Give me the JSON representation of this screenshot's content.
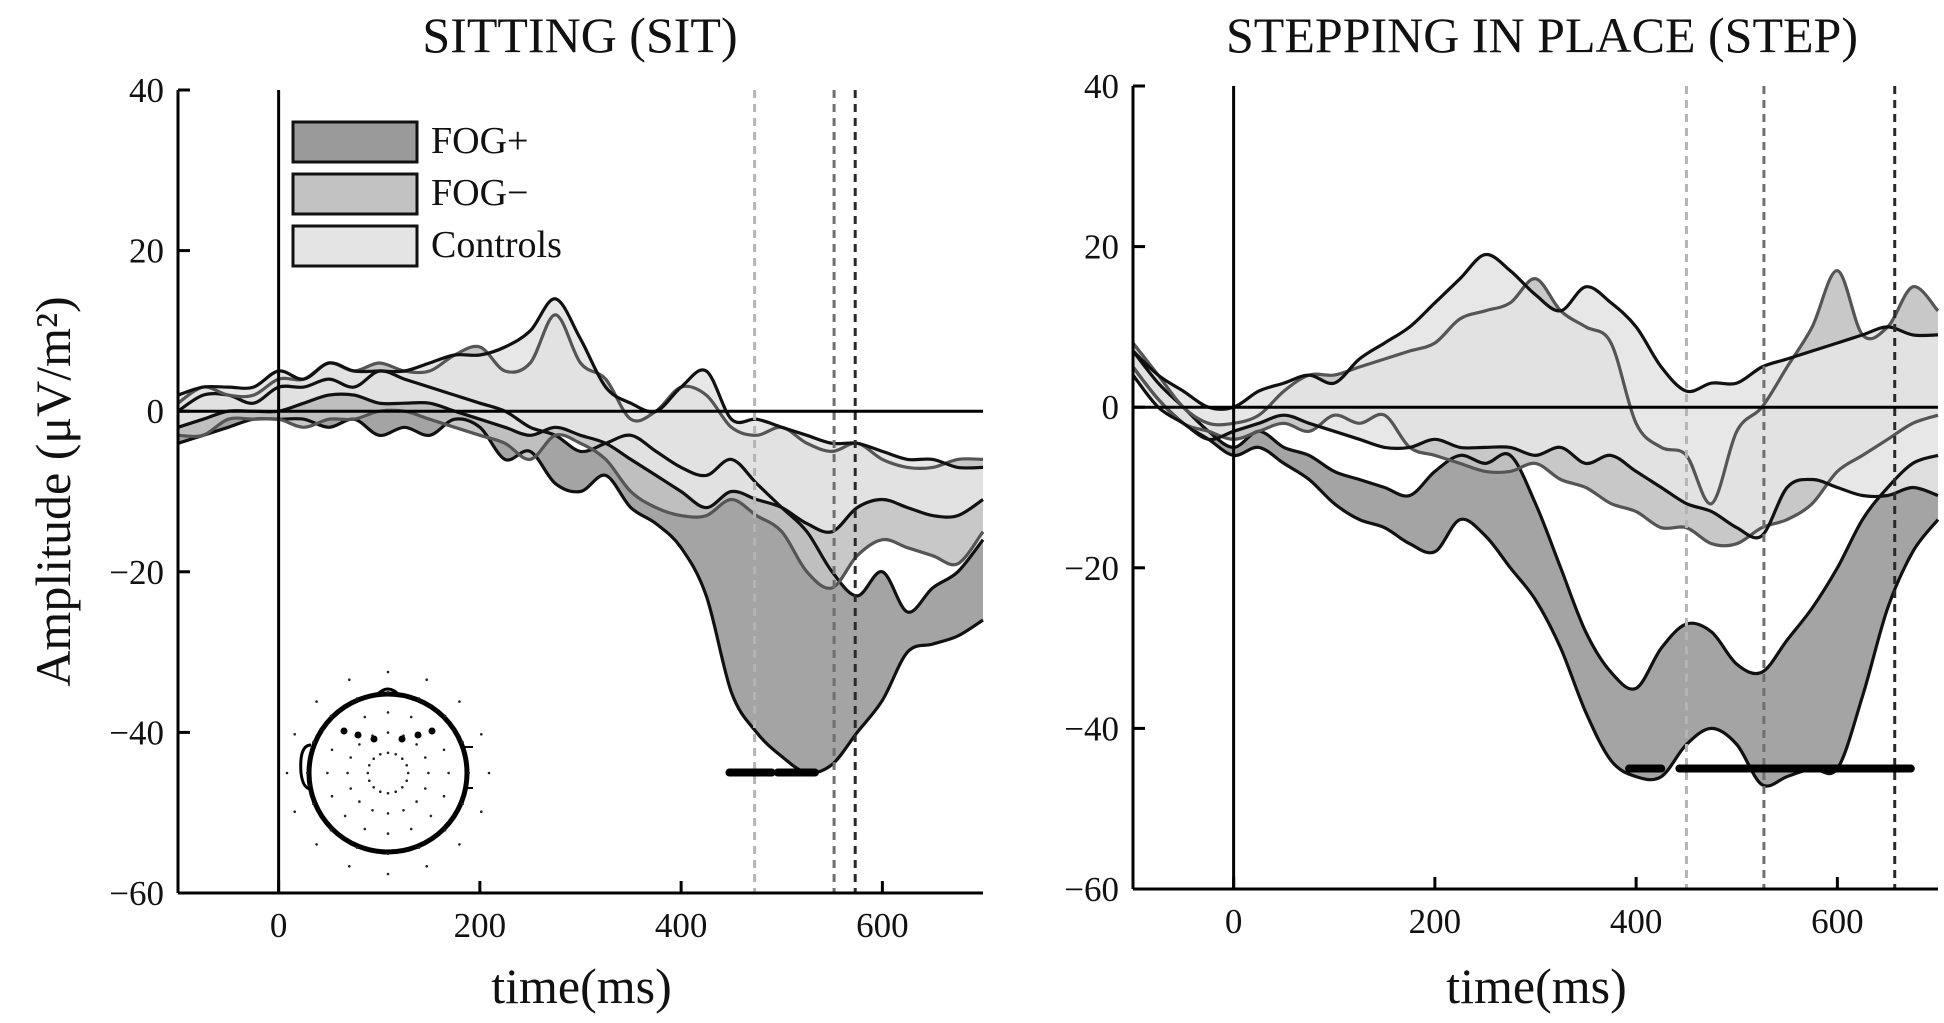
{
  "chart_data": [
    {
      "type": "area",
      "title": "SITTING (SIT)",
      "xlabel": "time(ms)",
      "ylabel": "Amplitude (μV/m²)",
      "xlim": [
        -100,
        700
      ],
      "ylim": [
        -60,
        40
      ],
      "x_ticks": [
        0,
        200,
        400,
        600
      ],
      "y_ticks": [
        40,
        20,
        0,
        -20,
        -40,
        -60
      ],
      "x_tick_labels": [
        "0",
        "200",
        "400",
        "600"
      ],
      "y_tick_labels": [
        "40",
        "20",
        "0",
        "−20",
        "−40",
        "−60"
      ],
      "legend": {
        "placement": "top-left",
        "entries": [
          "FOG+",
          "FOG−",
          "Controls"
        ]
      },
      "vlines_ms": [
        473,
        552,
        573
      ],
      "significance_bars_ms": [
        [
          448,
          490
        ],
        [
          496,
          533
        ]
      ],
      "significance_level": -45,
      "inset": "scalp-map",
      "x": [
        -100,
        -75,
        -50,
        -25,
        0,
        25,
        50,
        75,
        100,
        125,
        150,
        175,
        200,
        225,
        250,
        275,
        300,
        325,
        350,
        375,
        400,
        425,
        450,
        475,
        500,
        525,
        550,
        575,
        600,
        625,
        650,
        675,
        700
      ],
      "series": [
        {
          "name": "FOG+",
          "upper": [
            0,
            2,
            2,
            1,
            3,
            3,
            4,
            3,
            5,
            4,
            3,
            2,
            1,
            0,
            -2,
            -3,
            -5,
            -4,
            -3,
            -5,
            -7,
            -8,
            -6,
            -9,
            -12,
            -15,
            -20,
            -23,
            -20,
            -25,
            -22,
            -20,
            -16
          ],
          "lower": [
            -4,
            -3,
            -2,
            -1,
            -1,
            -1,
            -2,
            -1,
            -3,
            -2,
            -3,
            -1,
            -2,
            -6,
            -5,
            -9,
            -10,
            -8,
            -12,
            -14,
            -17,
            -23,
            -35,
            -40,
            -43,
            -45,
            -44,
            -40,
            -36,
            -30,
            -29,
            -28,
            -26
          ]
        },
        {
          "name": "FOG−",
          "upper": [
            1,
            3,
            2,
            2,
            4,
            4,
            6,
            5,
            6,
            5,
            5,
            7,
            8,
            5,
            6,
            12,
            6,
            4,
            -1,
            0,
            3,
            2,
            -2,
            -3,
            -2,
            -4,
            -5,
            -4,
            -6,
            -7,
            -7,
            -6,
            -6
          ],
          "lower": [
            -3,
            -3,
            -1,
            -1,
            -1,
            -2,
            -1,
            -1,
            0,
            0,
            -1,
            -2,
            -3,
            -4,
            -6,
            -3,
            -4,
            -6,
            -10,
            -12,
            -13,
            -13,
            -11,
            -13,
            -15,
            -20,
            -22,
            -18,
            -16,
            -17,
            -18,
            -19,
            -15
          ]
        },
        {
          "name": "Controls",
          "upper": [
            2,
            3,
            3,
            3,
            5,
            4,
            6,
            5,
            5,
            5,
            6,
            7,
            7,
            8,
            10,
            14,
            9,
            3,
            1,
            0,
            3,
            5,
            -1,
            -1,
            -2,
            -3,
            -4,
            -4,
            -5,
            -6,
            -6,
            -7,
            -7
          ],
          "lower": [
            -2,
            -1,
            0,
            0,
            0,
            1,
            2,
            2,
            1,
            1,
            1,
            0,
            -1,
            -2,
            -3,
            -2,
            -3,
            -4,
            -6,
            -8,
            -10,
            -12,
            -10,
            -11,
            -12,
            -14,
            -15,
            -12,
            -11,
            -12,
            -13,
            -13,
            -11
          ]
        }
      ]
    },
    {
      "type": "area",
      "title": "STEPPING IN PLACE (STEP)",
      "xlabel": "time(ms)",
      "ylabel": "",
      "xlim": [
        -100,
        700
      ],
      "ylim": [
        -60,
        40
      ],
      "x_ticks": [
        0,
        200,
        400,
        600
      ],
      "y_ticks": [
        40,
        20,
        0,
        -20,
        -40,
        -60
      ],
      "x_tick_labels": [
        "0",
        "200",
        "400",
        "600"
      ],
      "y_tick_labels": [
        "40",
        "20",
        "0",
        "−20",
        "−40",
        "−60"
      ],
      "vlines_ms": [
        450,
        527,
        657
      ],
      "significance_bars_ms": [
        [
          393,
          425
        ],
        [
          443,
          673
        ]
      ],
      "significance_level": -45,
      "x": [
        -100,
        -75,
        -50,
        -25,
        0,
        25,
        50,
        75,
        100,
        125,
        150,
        175,
        200,
        225,
        250,
        275,
        300,
        325,
        350,
        375,
        400,
        425,
        450,
        475,
        500,
        525,
        550,
        575,
        600,
        625,
        650,
        675,
        700
      ],
      "series": [
        {
          "name": "FOG+",
          "upper": [
            7,
            3,
            0,
            -3,
            -5,
            -3,
            -5,
            -6,
            -8,
            -9,
            -10,
            -11,
            -8,
            -6,
            -7,
            -6,
            -12,
            -20,
            -28,
            -33,
            -35,
            -30,
            -27,
            -28,
            -32,
            -33,
            -29,
            -25,
            -20,
            -14,
            -10,
            -7,
            -6
          ],
          "lower": [
            5,
            1,
            -2,
            -4,
            -6,
            -5,
            -7,
            -9,
            -12,
            -14,
            -15,
            -17,
            -18,
            -14,
            -16,
            -20,
            -24,
            -30,
            -38,
            -44,
            -46,
            -46,
            -42,
            -40,
            -42,
            -47,
            -46,
            -45,
            -45,
            -36,
            -25,
            -18,
            -14
          ]
        },
        {
          "name": "FOG−",
          "upper": [
            8,
            4,
            0,
            -2,
            -2,
            -1,
            2,
            4,
            4,
            5,
            6,
            7,
            8,
            11,
            12,
            13,
            16,
            12,
            10,
            8,
            -2,
            -5,
            -6,
            -12,
            -3,
            0,
            5,
            10,
            17,
            9,
            10,
            15,
            12
          ],
          "lower": [
            5,
            1,
            -2,
            -3,
            -4,
            -3,
            -2,
            -3,
            -1,
            -2,
            -1,
            -5,
            -6,
            -7,
            -8,
            -8,
            -7,
            -9,
            -10,
            -12,
            -13,
            -15,
            -15,
            -17,
            -17,
            -15,
            -14,
            -12,
            -8,
            -6,
            -4,
            -2,
            -1
          ]
        },
        {
          "name": "Controls",
          "upper": [
            7,
            4,
            2,
            0,
            0,
            2,
            3,
            4,
            3,
            6,
            8,
            10,
            13,
            16,
            19,
            17,
            14,
            12,
            15,
            13,
            10,
            5,
            2,
            3,
            3,
            5,
            6,
            7,
            8,
            9,
            10,
            9,
            9
          ],
          "lower": [
            4,
            0,
            -2,
            -4,
            -3,
            -2,
            -1,
            -2,
            -3,
            -4,
            -5,
            -5,
            -4,
            -5,
            -5,
            -5,
            -6,
            -5,
            -7,
            -6,
            -8,
            -10,
            -12,
            -13,
            -15,
            -16,
            -10,
            -9,
            -10,
            -11,
            -11,
            -10,
            -11
          ]
        }
      ]
    }
  ]
}
